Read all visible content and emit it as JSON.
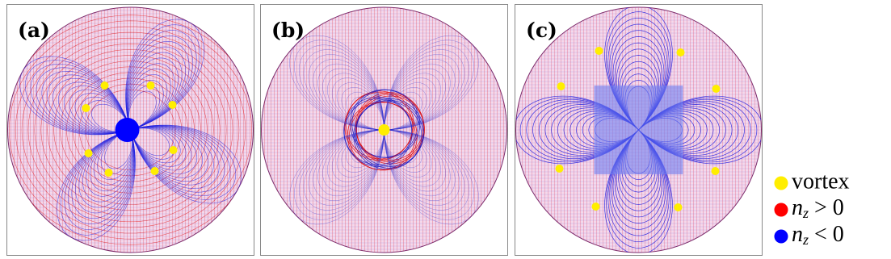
{
  "panels": [
    {
      "label": "(a)"
    },
    {
      "label": "(b)"
    },
    {
      "label": "(c)"
    }
  ],
  "legend": [
    {
      "label": "vortex",
      "color": "#ffee00"
    },
    {
      "base": "n",
      "sub": "z",
      "rest": " > 0",
      "color": "#ff0000"
    },
    {
      "base": "n",
      "sub": "z",
      "rest": " < 0",
      "color": "#0000ff"
    }
  ]
}
